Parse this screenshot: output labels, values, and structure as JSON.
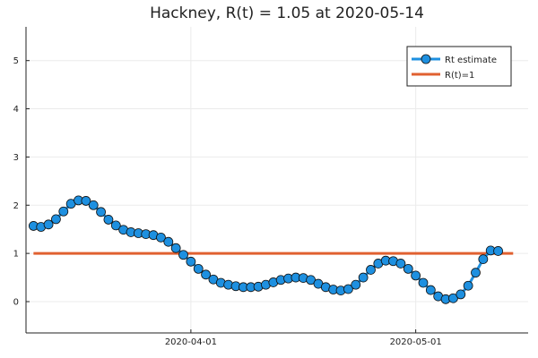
{
  "chart_data": {
    "type": "line",
    "title": "Hackney, R(t) = 1.05 at 2020-05-14",
    "xlabel": "",
    "ylabel": "",
    "x_start": "2020-03-11",
    "x_end": "2020-05-14",
    "xlim": [
      "2020-03-10",
      "2020-05-16"
    ],
    "ylim": [
      -0.65,
      5.7
    ],
    "x_ticks": [
      {
        "date": "2020-04-01",
        "label": "2020-04-01"
      },
      {
        "date": "2020-05-01",
        "label": "2020-05-01"
      }
    ],
    "y_ticks": [
      0,
      1,
      2,
      3,
      4,
      5
    ],
    "y_tick_labels": [
      "0",
      "1",
      "2",
      "3",
      "4",
      "5"
    ],
    "grid": true,
    "legend_position": "top-right",
    "series": [
      {
        "name": "Rt estimate",
        "color": "#1e90e0",
        "marker": "circle",
        "values": [
          1.57,
          1.55,
          1.6,
          1.71,
          1.87,
          2.03,
          2.1,
          2.09,
          2.0,
          1.86,
          1.7,
          1.58,
          1.49,
          1.44,
          1.42,
          1.4,
          1.38,
          1.33,
          1.24,
          1.11,
          0.97,
          0.83,
          0.68,
          0.56,
          0.46,
          0.39,
          0.35,
          0.32,
          0.3,
          0.3,
          0.31,
          0.35,
          0.4,
          0.45,
          0.48,
          0.5,
          0.49,
          0.45,
          0.37,
          0.3,
          0.25,
          0.23,
          0.26,
          0.35,
          0.5,
          0.66,
          0.79,
          0.85,
          0.84,
          0.79,
          0.68,
          0.54,
          0.39,
          0.24,
          0.11,
          0.05,
          0.07,
          0.15,
          0.33,
          0.6,
          0.88,
          1.06,
          1.05
        ]
      },
      {
        "name": "R(t)=1",
        "color": "#e06030",
        "marker": "none",
        "values": [
          1,
          1
        ]
      }
    ]
  }
}
